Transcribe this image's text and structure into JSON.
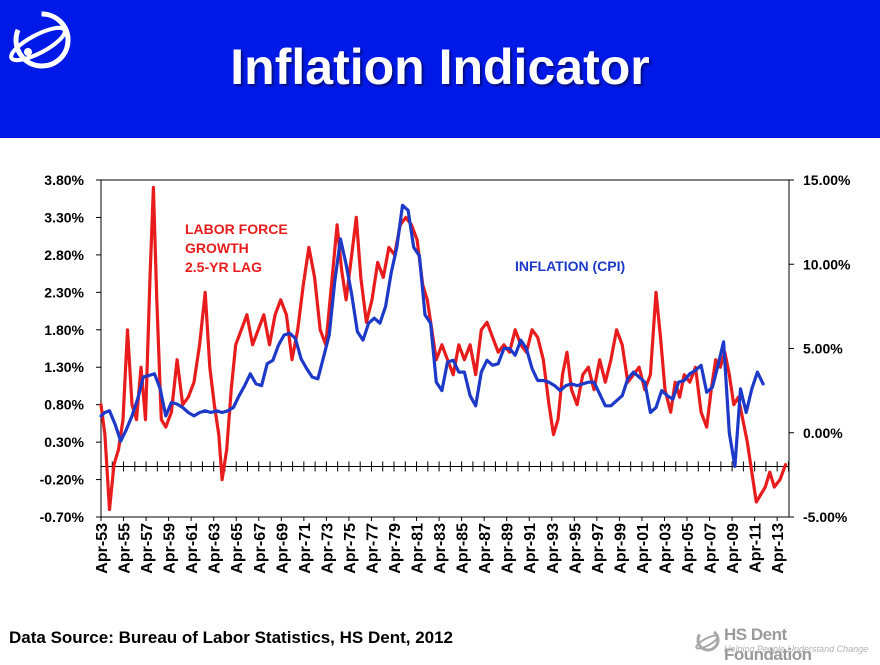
{
  "header": {
    "title": "Inflation Indicator",
    "background_color": "#0019e6",
    "logo_icon": "hs-dent-globe-logo"
  },
  "chart_data": {
    "type": "line",
    "title": "",
    "x": [
      "Apr-53",
      "Apr-55",
      "Apr-57",
      "Apr-59",
      "Apr-61",
      "Apr-63",
      "Apr-65",
      "Apr-67",
      "Apr-69",
      "Apr-71",
      "Apr-73",
      "Apr-75",
      "Apr-77",
      "Apr-79",
      "Apr-81",
      "Apr-83",
      "Apr-85",
      "Apr-87",
      "Apr-89",
      "Apr-91",
      "Apr-93",
      "Apr-95",
      "Apr-97",
      "Apr-99",
      "Apr-01",
      "Apr-03",
      "Apr-05",
      "Apr-07",
      "Apr-09",
      "Apr-11",
      "Apr-13"
    ],
    "y_left": {
      "ticks": [
        "3.80%",
        "3.30%",
        "2.80%",
        "2.30%",
        "1.80%",
        "1.30%",
        "0.80%",
        "0.30%",
        "-0.20%",
        "-0.70%"
      ],
      "range": [
        -0.7,
        3.8
      ]
    },
    "y_right": {
      "ticks": [
        "15.00%",
        "10.00%",
        "5.00%",
        "0.00%",
        "-5.00%"
      ],
      "range": [
        -5.0,
        15.0
      ]
    },
    "annotations": {
      "labor": "LABOR FORCE GROWTH 2.5-YR LAG",
      "cpi": "INFLATION (CPI)"
    },
    "series": [
      {
        "name": "LABOR FORCE GROWTH 2.5-YR LAG",
        "axis": "left",
        "color": "#e81c1c",
        "start_year": 1953.25,
        "end_year": 2014.0,
        "points": [
          [
            1953.25,
            0.8
          ],
          [
            1953.6,
            0.4
          ],
          [
            1954.0,
            -0.6
          ],
          [
            1954.4,
            0.0
          ],
          [
            1954.8,
            0.2
          ],
          [
            1955.2,
            0.6
          ],
          [
            1955.6,
            1.8
          ],
          [
            1956.0,
            0.8
          ],
          [
            1956.4,
            0.6
          ],
          [
            1956.8,
            1.3
          ],
          [
            1957.2,
            0.6
          ],
          [
            1957.6,
            2.5
          ],
          [
            1957.9,
            3.7
          ],
          [
            1958.2,
            2.2
          ],
          [
            1958.6,
            0.6
          ],
          [
            1959.0,
            0.5
          ],
          [
            1959.5,
            0.7
          ],
          [
            1960.0,
            1.4
          ],
          [
            1960.5,
            0.8
          ],
          [
            1961.0,
            0.9
          ],
          [
            1961.5,
            1.1
          ],
          [
            1962.0,
            1.6
          ],
          [
            1962.5,
            2.3
          ],
          [
            1962.9,
            1.3
          ],
          [
            1963.3,
            0.8
          ],
          [
            1963.7,
            0.4
          ],
          [
            1964.0,
            -0.2
          ],
          [
            1964.4,
            0.2
          ],
          [
            1964.8,
            1.0
          ],
          [
            1965.2,
            1.6
          ],
          [
            1965.7,
            1.8
          ],
          [
            1966.2,
            2.0
          ],
          [
            1966.7,
            1.6
          ],
          [
            1967.2,
            1.8
          ],
          [
            1967.7,
            2.0
          ],
          [
            1968.2,
            1.6
          ],
          [
            1968.7,
            2.0
          ],
          [
            1969.2,
            2.2
          ],
          [
            1969.7,
            2.0
          ],
          [
            1970.2,
            1.4
          ],
          [
            1970.7,
            1.8
          ],
          [
            1971.2,
            2.4
          ],
          [
            1971.7,
            2.9
          ],
          [
            1972.2,
            2.5
          ],
          [
            1972.7,
            1.8
          ],
          [
            1973.2,
            1.6
          ],
          [
            1973.7,
            2.4
          ],
          [
            1974.2,
            3.2
          ],
          [
            1974.6,
            2.6
          ],
          [
            1975.0,
            2.2
          ],
          [
            1975.5,
            2.8
          ],
          [
            1975.9,
            3.3
          ],
          [
            1976.3,
            2.5
          ],
          [
            1976.8,
            1.9
          ],
          [
            1977.3,
            2.2
          ],
          [
            1977.8,
            2.7
          ],
          [
            1978.3,
            2.5
          ],
          [
            1978.8,
            2.9
          ],
          [
            1979.3,
            2.8
          ],
          [
            1979.8,
            3.2
          ],
          [
            1980.3,
            3.3
          ],
          [
            1980.8,
            3.2
          ],
          [
            1981.3,
            3.0
          ],
          [
            1981.8,
            2.4
          ],
          [
            1982.2,
            2.2
          ],
          [
            1982.6,
            1.8
          ],
          [
            1983.0,
            1.4
          ],
          [
            1983.5,
            1.6
          ],
          [
            1984.0,
            1.4
          ],
          [
            1984.5,
            1.2
          ],
          [
            1985.0,
            1.6
          ],
          [
            1985.5,
            1.4
          ],
          [
            1986.0,
            1.6
          ],
          [
            1986.5,
            1.2
          ],
          [
            1987.0,
            1.8
          ],
          [
            1987.5,
            1.9
          ],
          [
            1988.0,
            1.7
          ],
          [
            1988.5,
            1.5
          ],
          [
            1989.0,
            1.6
          ],
          [
            1989.5,
            1.5
          ],
          [
            1990.0,
            1.8
          ],
          [
            1990.5,
            1.6
          ],
          [
            1991.0,
            1.5
          ],
          [
            1991.5,
            1.8
          ],
          [
            1992.0,
            1.7
          ],
          [
            1992.5,
            1.4
          ],
          [
            1993.0,
            0.8
          ],
          [
            1993.4,
            0.4
          ],
          [
            1993.8,
            0.6
          ],
          [
            1994.2,
            1.2
          ],
          [
            1994.6,
            1.5
          ],
          [
            1995.0,
            1.0
          ],
          [
            1995.5,
            0.8
          ],
          [
            1996.0,
            1.2
          ],
          [
            1996.5,
            1.3
          ],
          [
            1997.0,
            1.0
          ],
          [
            1997.5,
            1.4
          ],
          [
            1998.0,
            1.1
          ],
          [
            1998.5,
            1.4
          ],
          [
            1999.0,
            1.8
          ],
          [
            1999.5,
            1.6
          ],
          [
            2000.0,
            1.1
          ],
          [
            2000.5,
            1.2
          ],
          [
            2001.0,
            1.3
          ],
          [
            2001.5,
            1.0
          ],
          [
            2002.0,
            1.2
          ],
          [
            2002.5,
            2.3
          ],
          [
            2002.9,
            1.7
          ],
          [
            2003.3,
            1.0
          ],
          [
            2003.8,
            0.7
          ],
          [
            2004.2,
            1.1
          ],
          [
            2004.6,
            0.9
          ],
          [
            2005.0,
            1.2
          ],
          [
            2005.5,
            1.1
          ],
          [
            2006.0,
            1.3
          ],
          [
            2006.5,
            0.7
          ],
          [
            2007.0,
            0.5
          ],
          [
            2007.4,
            1.0
          ],
          [
            2007.8,
            1.4
          ],
          [
            2008.2,
            1.3
          ],
          [
            2008.6,
            1.5
          ],
          [
            2009.0,
            1.2
          ],
          [
            2009.4,
            0.8
          ],
          [
            2009.8,
            0.9
          ],
          [
            2010.2,
            0.6
          ],
          [
            2010.6,
            0.3
          ],
          [
            2011.0,
            -0.1
          ],
          [
            2011.4,
            -0.5
          ],
          [
            2011.8,
            -0.4
          ],
          [
            2012.2,
            -0.3
          ],
          [
            2012.6,
            -0.1
          ],
          [
            2013.0,
            -0.3
          ],
          [
            2013.5,
            -0.2
          ],
          [
            2014.0,
            0.0
          ]
        ]
      },
      {
        "name": "INFLATION (CPI)",
        "axis": "right",
        "color": "#1c39c8",
        "start_year": 1953.25,
        "end_year": 2012.0,
        "points": [
          [
            1953.25,
            1.0
          ],
          [
            1953.6,
            1.2
          ],
          [
            1954.0,
            1.3
          ],
          [
            1954.5,
            0.5
          ],
          [
            1955.0,
            -0.5
          ],
          [
            1955.5,
            0.2
          ],
          [
            1956.0,
            1.0
          ],
          [
            1956.5,
            2.0
          ],
          [
            1957.0,
            3.3
          ],
          [
            1957.5,
            3.4
          ],
          [
            1958.0,
            3.5
          ],
          [
            1958.5,
            2.6
          ],
          [
            1959.0,
            1.0
          ],
          [
            1959.5,
            1.8
          ],
          [
            1960.0,
            1.7
          ],
          [
            1960.5,
            1.5
          ],
          [
            1961.0,
            1.2
          ],
          [
            1961.5,
            1.0
          ],
          [
            1962.0,
            1.2
          ],
          [
            1962.5,
            1.3
          ],
          [
            1963.0,
            1.2
          ],
          [
            1963.5,
            1.3
          ],
          [
            1964.0,
            1.2
          ],
          [
            1964.5,
            1.3
          ],
          [
            1965.0,
            1.5
          ],
          [
            1965.5,
            2.2
          ],
          [
            1966.0,
            2.8
          ],
          [
            1966.5,
            3.5
          ],
          [
            1967.0,
            2.9
          ],
          [
            1967.5,
            2.8
          ],
          [
            1968.0,
            4.1
          ],
          [
            1968.5,
            4.3
          ],
          [
            1969.0,
            5.2
          ],
          [
            1969.5,
            5.8
          ],
          [
            1970.0,
            5.9
          ],
          [
            1970.5,
            5.6
          ],
          [
            1971.0,
            4.4
          ],
          [
            1971.5,
            3.8
          ],
          [
            1972.0,
            3.3
          ],
          [
            1972.5,
            3.2
          ],
          [
            1973.0,
            4.5
          ],
          [
            1973.5,
            5.8
          ],
          [
            1974.0,
            9.0
          ],
          [
            1974.5,
            11.5
          ],
          [
            1975.0,
            10.0
          ],
          [
            1975.5,
            8.2
          ],
          [
            1976.0,
            6.0
          ],
          [
            1976.5,
            5.5
          ],
          [
            1977.0,
            6.5
          ],
          [
            1977.5,
            6.8
          ],
          [
            1978.0,
            6.5
          ],
          [
            1978.5,
            7.5
          ],
          [
            1979.0,
            9.5
          ],
          [
            1979.5,
            11.0
          ],
          [
            1980.0,
            13.5
          ],
          [
            1980.5,
            13.2
          ],
          [
            1981.0,
            11.0
          ],
          [
            1981.5,
            10.5
          ],
          [
            1982.0,
            7.0
          ],
          [
            1982.5,
            6.5
          ],
          [
            1983.0,
            3.0
          ],
          [
            1983.5,
            2.5
          ],
          [
            1984.0,
            4.2
          ],
          [
            1984.5,
            4.3
          ],
          [
            1985.0,
            3.6
          ],
          [
            1985.5,
            3.6
          ],
          [
            1986.0,
            2.2
          ],
          [
            1986.5,
            1.6
          ],
          [
            1987.0,
            3.6
          ],
          [
            1987.5,
            4.3
          ],
          [
            1988.0,
            4.0
          ],
          [
            1988.5,
            4.1
          ],
          [
            1989.0,
            5.0
          ],
          [
            1989.5,
            5.0
          ],
          [
            1990.0,
            4.6
          ],
          [
            1990.5,
            5.5
          ],
          [
            1991.0,
            5.0
          ],
          [
            1991.5,
            3.8
          ],
          [
            1992.0,
            3.1
          ],
          [
            1992.5,
            3.1
          ],
          [
            1993.0,
            3.0
          ],
          [
            1993.5,
            2.8
          ],
          [
            1994.0,
            2.5
          ],
          [
            1994.5,
            2.8
          ],
          [
            1995.0,
            2.9
          ],
          [
            1995.5,
            2.8
          ],
          [
            1996.0,
            2.9
          ],
          [
            1996.5,
            3.0
          ],
          [
            1997.0,
            3.0
          ],
          [
            1997.5,
            2.3
          ],
          [
            1998.0,
            1.6
          ],
          [
            1998.5,
            1.6
          ],
          [
            1999.0,
            1.9
          ],
          [
            1999.5,
            2.2
          ],
          [
            2000.0,
            3.2
          ],
          [
            2000.5,
            3.6
          ],
          [
            2001.0,
            3.3
          ],
          [
            2001.5,
            3.0
          ],
          [
            2002.0,
            1.2
          ],
          [
            2002.5,
            1.5
          ],
          [
            2003.0,
            2.5
          ],
          [
            2003.5,
            2.2
          ],
          [
            2004.0,
            2.0
          ],
          [
            2004.5,
            3.0
          ],
          [
            2005.0,
            3.1
          ],
          [
            2005.5,
            3.5
          ],
          [
            2006.0,
            3.7
          ],
          [
            2006.5,
            4.0
          ],
          [
            2007.0,
            2.4
          ],
          [
            2007.5,
            2.7
          ],
          [
            2008.0,
            4.0
          ],
          [
            2008.5,
            5.4
          ],
          [
            2009.0,
            0.0
          ],
          [
            2009.5,
            -2.0
          ],
          [
            2010.0,
            2.6
          ],
          [
            2010.5,
            1.2
          ],
          [
            2011.0,
            2.6
          ],
          [
            2011.5,
            3.6
          ],
          [
            2012.0,
            2.9
          ]
        ]
      }
    ]
  },
  "footer": {
    "source": "Data Source: Bureau of Labor Statistics, HS Dent, 2012",
    "brand_name": "HS Dent Foundation",
    "brand_tagline": "Helping People Understand Change"
  }
}
